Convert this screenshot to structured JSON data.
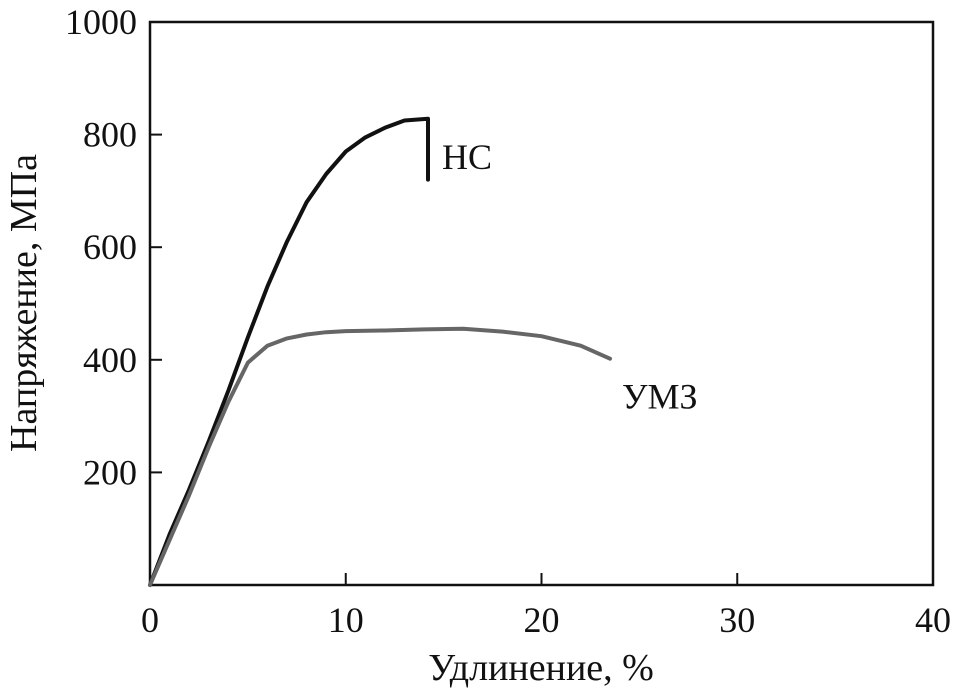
{
  "chart_data": {
    "type": "line",
    "title": "",
    "xlabel": "Удлинение, %",
    "ylabel": "Напряжение, МПа",
    "xlim": [
      0,
      40
    ],
    "ylim": [
      0,
      1000
    ],
    "xticks": [
      0,
      10,
      20,
      30,
      40
    ],
    "yticks": [
      200,
      400,
      600,
      800,
      1000
    ],
    "grid": false,
    "legend": "none",
    "series": [
      {
        "name": "НС",
        "color": "#111111",
        "points": [
          [
            0,
            0
          ],
          [
            1,
            90
          ],
          [
            2,
            170
          ],
          [
            3,
            255
          ],
          [
            4,
            345
          ],
          [
            5,
            440
          ],
          [
            6,
            530
          ],
          [
            7,
            610
          ],
          [
            8,
            680
          ],
          [
            9,
            730
          ],
          [
            10,
            770
          ],
          [
            11,
            795
          ],
          [
            12,
            812
          ],
          [
            13,
            825
          ],
          [
            14.2,
            828
          ],
          [
            14.2,
            780
          ],
          [
            14.2,
            720
          ]
        ]
      },
      {
        "name": "УМЗ",
        "color": "#666666",
        "points": [
          [
            0,
            0
          ],
          [
            1,
            80
          ],
          [
            2,
            160
          ],
          [
            3,
            245
          ],
          [
            4,
            325
          ],
          [
            5,
            395
          ],
          [
            6,
            425
          ],
          [
            7,
            438
          ],
          [
            8,
            445
          ],
          [
            9,
            449
          ],
          [
            10,
            451
          ],
          [
            12,
            452
          ],
          [
            14,
            454
          ],
          [
            16,
            455
          ],
          [
            18,
            450
          ],
          [
            20,
            442
          ],
          [
            22,
            425
          ],
          [
            23.5,
            402
          ]
        ]
      }
    ]
  }
}
